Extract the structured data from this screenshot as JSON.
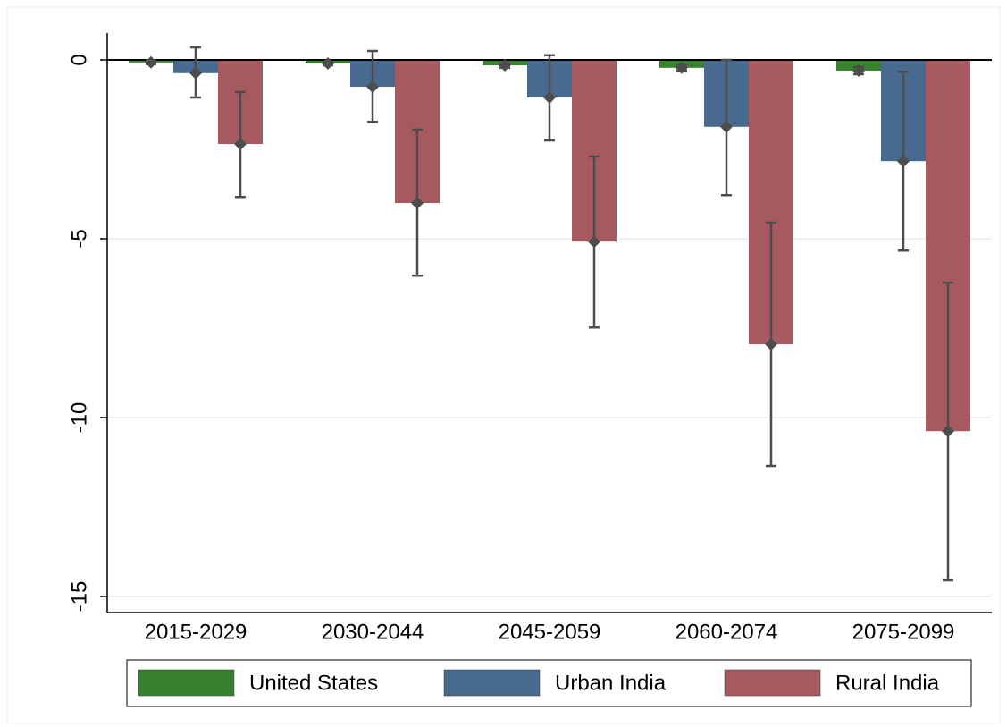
{
  "chart_data": {
    "type": "bar",
    "categories": [
      "2015-2029",
      "2030-2044",
      "2045-2059",
      "2060-2074",
      "2075-2099"
    ],
    "series": [
      {
        "name": "United States",
        "color": "#37812f",
        "values": [
          -0.07,
          -0.1,
          -0.15,
          -0.22,
          -0.3
        ],
        "lower": [
          -0.12,
          -0.15,
          -0.22,
          -0.3,
          -0.4
        ],
        "upper": [
          -0.02,
          -0.05,
          -0.08,
          -0.14,
          -0.2
        ]
      },
      {
        "name": "Urban India",
        "color": "#486a8e",
        "values": [
          -0.37,
          -0.75,
          -1.05,
          -1.87,
          -2.83
        ],
        "lower": [
          -1.05,
          -1.73,
          -2.25,
          -3.78,
          -5.33
        ],
        "upper": [
          0.35,
          0.25,
          0.13,
          0.0,
          -0.33
        ]
      },
      {
        "name": "Rural India",
        "color": "#a65a60",
        "values": [
          -2.35,
          -4.0,
          -5.08,
          -7.95,
          -10.38
        ],
        "lower": [
          -3.83,
          -6.03,
          -7.48,
          -11.35,
          -14.55
        ],
        "upper": [
          -0.9,
          -1.95,
          -2.7,
          -4.55,
          -6.23
        ]
      }
    ],
    "ylim": [
      -15.45,
      0.75
    ],
    "yticks": [
      0,
      -5,
      -10,
      -15
    ],
    "grid": true,
    "legend": "bottom"
  }
}
